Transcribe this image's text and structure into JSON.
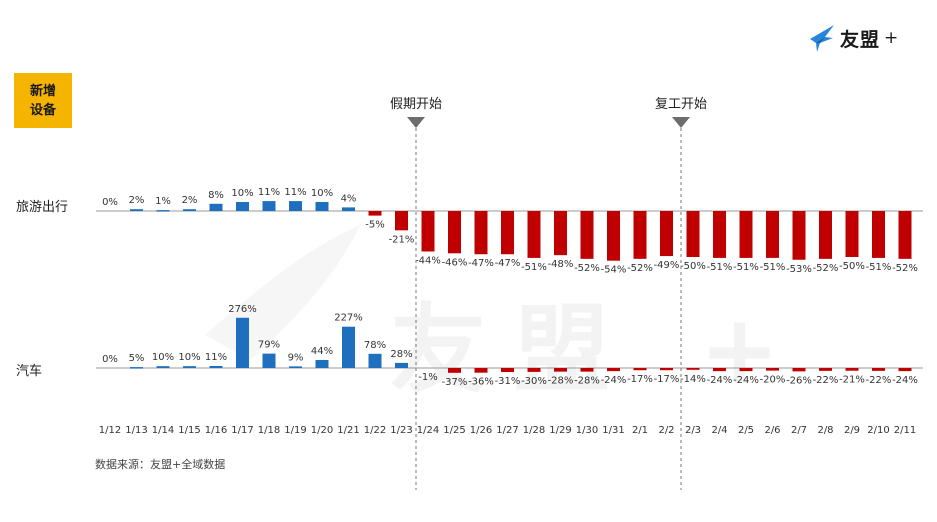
{
  "badge": {
    "line1": "新增",
    "line2": "设备"
  },
  "logo": {
    "text": "友盟",
    "plus": "+"
  },
  "watermark": "友盟 +",
  "rows": {
    "travel": "旅游出行",
    "car": "汽车"
  },
  "markers": [
    {
      "label": "假期开始",
      "at": "1/24"
    },
    {
      "label": "复工开始",
      "at": "2/3"
    }
  ],
  "source": "数据来源：友盟+全域数据",
  "colors": {
    "positive": "#1f6fbf",
    "negative": "#c00000",
    "badge": "#f5b400",
    "marker": "#6d6d6d"
  },
  "chart_data": [
    {
      "type": "bar",
      "name": "旅游出行",
      "categories": [
        "1/12",
        "1/13",
        "1/14",
        "1/15",
        "1/16",
        "1/17",
        "1/18",
        "1/19",
        "1/20",
        "1/21",
        "1/22",
        "1/23",
        "1/24",
        "1/25",
        "1/26",
        "1/27",
        "1/28",
        "1/29",
        "1/30",
        "1/31",
        "2/1",
        "2/2",
        "2/3",
        "2/4",
        "2/5",
        "2/6",
        "2/7",
        "2/8",
        "2/9",
        "2/10",
        "2/11"
      ],
      "values": [
        0,
        2,
        1,
        2,
        8,
        10,
        11,
        11,
        10,
        4,
        -5,
        -21,
        -44,
        -46,
        -47,
        -47,
        -51,
        -48,
        -52,
        -54,
        -52,
        -49,
        -50,
        -51,
        -51,
        -51,
        -53,
        -52,
        -50,
        -51,
        -52
      ],
      "labels": [
        "0%",
        "2%",
        "1%",
        "2%",
        "8%",
        "10%",
        "11%",
        "11%",
        "10%",
        "4%",
        "-5%",
        "-21%",
        "-44%",
        "-46%",
        "-47%",
        "-47%",
        "-51%",
        "-48%",
        "-52%",
        "-54%",
        "-52%",
        "-49%",
        "-50%",
        "-51%",
        "-51%",
        "-51%",
        "-53%",
        "-52%",
        "-50%",
        "-51%",
        "-52%"
      ],
      "unit": "%"
    },
    {
      "type": "bar",
      "name": "汽车",
      "categories": [
        "1/12",
        "1/13",
        "1/14",
        "1/15",
        "1/16",
        "1/17",
        "1/18",
        "1/19",
        "1/20",
        "1/21",
        "1/22",
        "1/23",
        "1/24",
        "1/25",
        "1/26",
        "1/27",
        "1/28",
        "1/29",
        "1/30",
        "1/31",
        "2/1",
        "2/2",
        "2/3",
        "2/4",
        "2/5",
        "2/6",
        "2/7",
        "2/8",
        "2/9",
        "2/10",
        "2/11"
      ],
      "values": [
        0,
        5,
        10,
        10,
        11,
        276,
        79,
        9,
        44,
        227,
        78,
        28,
        -1,
        -37,
        -36,
        -31,
        -30,
        -28,
        -28,
        -24,
        -17,
        -17,
        -14,
        -24,
        -24,
        -20,
        -26,
        -22,
        -21,
        -22,
        -24
      ],
      "labels": [
        "0%",
        "5%",
        "10%",
        "10%",
        "11%",
        "276%",
        "79%",
        "9%",
        "44%",
        "227%",
        "78%",
        "28%",
        "-1%",
        "-37%",
        "-36%",
        "-31%",
        "-30%",
        "-28%",
        "-28%",
        "-24%",
        "-17%",
        "-17%",
        "-14%",
        "-24%",
        "-24%",
        "-20%",
        "-26%",
        "-22%",
        "-21%",
        "-22%",
        "-24%"
      ],
      "unit": "%"
    }
  ]
}
